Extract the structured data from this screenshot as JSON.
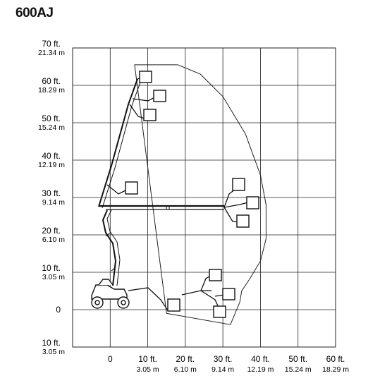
{
  "title": "600AJ",
  "chart_data": {
    "type": "diagram",
    "title": "600AJ",
    "y_ticks": [
      {
        "ft": "70 ft.",
        "m": "21.34  m",
        "value": 70
      },
      {
        "ft": "60 ft.",
        "m": "18.29 m",
        "value": 60
      },
      {
        "ft": "50 ft.",
        "m": "15.24 m",
        "value": 50
      },
      {
        "ft": "40 ft.",
        "m": "12.19 m",
        "value": 40
      },
      {
        "ft": "30 ft.",
        "m": "9.14 m",
        "value": 30
      },
      {
        "ft": "20 ft.",
        "m": "6.10 m",
        "value": 20
      },
      {
        "ft": "10 ft.",
        "m": "3.05 m",
        "value": 10
      },
      {
        "ft": "0",
        "m": "",
        "value": 0
      },
      {
        "ft": "10 ft.",
        "m": "3.05 m",
        "value": -10
      }
    ],
    "x_ticks": [
      {
        "ft": "0",
        "m": "",
        "value": 0
      },
      {
        "ft": "10 ft.",
        "m": "3.05 m",
        "value": 10
      },
      {
        "ft": "20 ft.",
        "m": "6.10 m",
        "value": 20
      },
      {
        "ft": "30 ft.",
        "m": "9.14 m",
        "value": 30
      },
      {
        "ft": "40 ft.",
        "m": "12.19 m",
        "value": 40
      },
      {
        "ft": "50 ft.",
        "m": "15.24 m",
        "value": 50
      },
      {
        "ft": "60 ft.",
        "m": "18.29 m",
        "value": 60
      }
    ],
    "xlim": [
      -10,
      60
    ],
    "ylim": [
      -10,
      70
    ],
    "grid": true,
    "envelope": [
      [
        6.5,
        65.5
      ],
      [
        18,
        65.5
      ],
      [
        24,
        63
      ],
      [
        30,
        57
      ],
      [
        36,
        47
      ],
      [
        40,
        36
      ],
      [
        41.5,
        28
      ],
      [
        41.5,
        19
      ],
      [
        40,
        13
      ],
      [
        37,
        8
      ],
      [
        35,
        5
      ],
      [
        34.5,
        2
      ],
      [
        32,
        -4
      ],
      [
        15,
        -1
      ]
    ]
  }
}
